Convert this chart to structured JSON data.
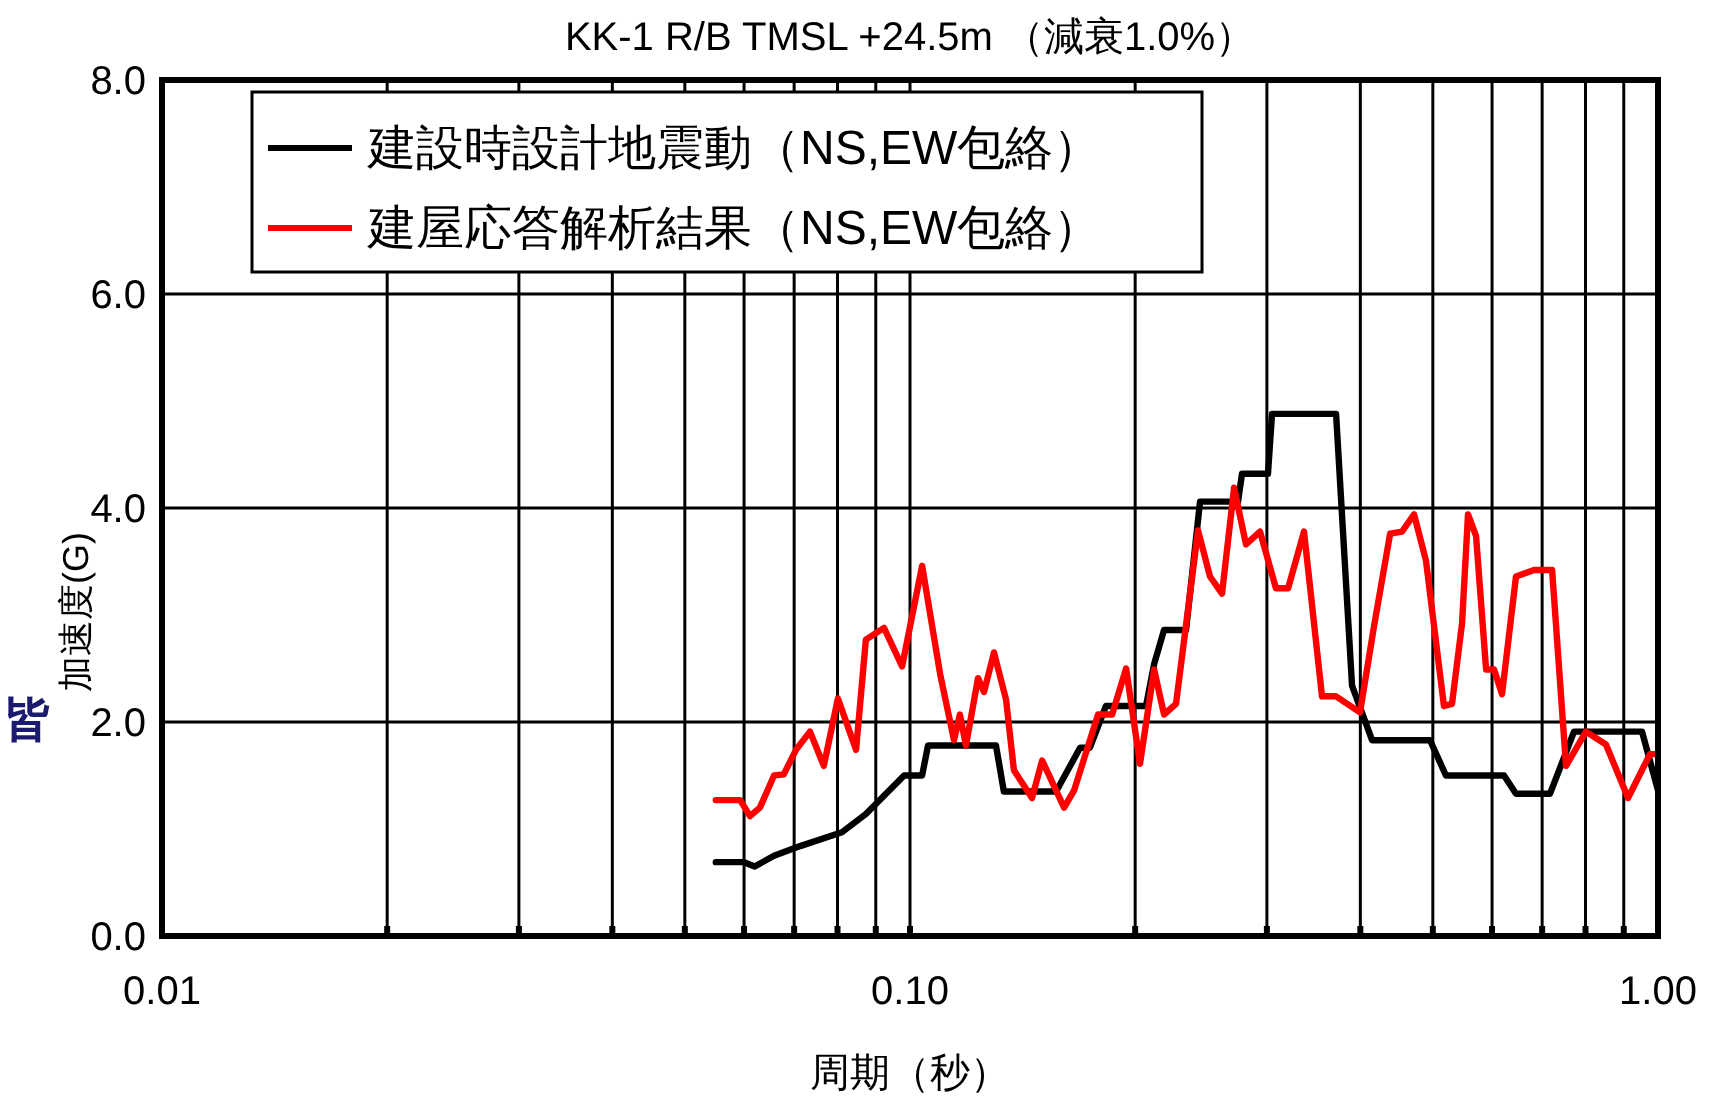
{
  "chart_data": {
    "type": "line",
    "title": "KK-1 R/B TMSL +24.5m （減衰1.0%）",
    "xlabel": "周期（秒）",
    "ylabel": "加速度(G)",
    "annotations": [
      "皆"
    ],
    "log": "x",
    "xlim": [
      0.01,
      1.0
    ],
    "ylim": [
      0,
      8
    ],
    "xticks": [
      {
        "value": 0.01,
        "label": "0.01"
      },
      {
        "value": 0.02,
        "label": null
      },
      {
        "value": 0.03,
        "label": null
      },
      {
        "value": 0.04,
        "label": null
      },
      {
        "value": 0.05,
        "label": null
      },
      {
        "value": 0.06,
        "label": null
      },
      {
        "value": 0.07,
        "label": null
      },
      {
        "value": 0.08,
        "label": null
      },
      {
        "value": 0.09,
        "label": null
      },
      {
        "value": 0.1,
        "label": "0.10"
      },
      {
        "value": 0.2,
        "label": null
      },
      {
        "value": 0.3,
        "label": null
      },
      {
        "value": 0.4,
        "label": null
      },
      {
        "value": 0.5,
        "label": null
      },
      {
        "value": 0.6,
        "label": null
      },
      {
        "value": 0.7,
        "label": null
      },
      {
        "value": 0.8,
        "label": null
      },
      {
        "value": 0.9,
        "label": null
      },
      {
        "value": 1.0,
        "label": "1.00"
      }
    ],
    "yticks": [
      {
        "value": 0,
        "label": "0.0"
      },
      {
        "value": 2,
        "label": "2.0"
      },
      {
        "value": 4,
        "label": "4.0"
      },
      {
        "value": 6,
        "label": "6.0"
      },
      {
        "value": 8,
        "label": "8.0"
      }
    ],
    "grid": true,
    "legend": "top left",
    "series": [
      {
        "name": "建設時設計地震動（NS,EW包絡）",
        "color": "#000000",
        "x": [
          0.055,
          0.06,
          0.062,
          0.0658,
          0.0713,
          0.0811,
          0.0873,
          0.0982,
          0.1038,
          0.1057,
          0.1303,
          0.1335,
          0.1568,
          0.1688,
          0.174,
          0.1828,
          0.2068,
          0.212,
          0.2186,
          0.2339,
          0.2442,
          0.2745,
          0.2779,
          0.301,
          0.3048,
          0.3712,
          0.3899,
          0.4147,
          0.4957,
          0.5206,
          0.6225,
          0.6459,
          0.7173,
          0.7722,
          0.952,
          1.0
        ],
        "values": [
          0.69,
          0.69,
          0.65,
          0.75,
          0.84,
          0.97,
          1.14,
          1.5,
          1.5,
          1.78,
          1.78,
          1.35,
          1.35,
          1.76,
          1.76,
          2.15,
          2.15,
          2.54,
          2.86,
          2.86,
          4.06,
          4.06,
          4.32,
          4.32,
          4.88,
          4.88,
          2.34,
          1.83,
          1.83,
          1.5,
          1.5,
          1.33,
          1.33,
          1.91,
          1.91,
          1.36
        ]
      },
      {
        "name": "建屋応答解析結果（NS,EW包絡）",
        "color": "#ff0000",
        "x": [
          0.055,
          0.0593,
          0.0611,
          0.063,
          0.0658,
          0.0678,
          0.0704,
          0.0735,
          0.0767,
          0.0801,
          0.0847,
          0.0873,
          0.0923,
          0.0976,
          0.1038,
          0.1097,
          0.1145,
          0.1166,
          0.1188,
          0.1233,
          0.1256,
          0.1295,
          0.1344,
          0.1377,
          0.1456,
          0.1502,
          0.1607,
          0.1657,
          0.1784,
          0.1863,
          0.1945,
          0.203,
          0.212,
          0.2186,
          0.2268,
          0.2427,
          0.2518,
          0.2613,
          0.2712,
          0.2813,
          0.2937,
          0.3085,
          0.3202,
          0.3363,
          0.3555,
          0.3712,
          0.3996,
          0.4173,
          0.4384,
          0.4549,
          0.4719,
          0.4895,
          0.5174,
          0.5304,
          0.547,
          0.5572,
          0.5711,
          0.5891,
          0.6037,
          0.6187,
          0.6459,
          0.6828,
          0.7218,
          0.7534,
          0.801,
          0.852,
          0.9119,
          0.9757,
          1.0
        ],
        "values": [
          1.27,
          1.27,
          1.12,
          1.2,
          1.5,
          1.51,
          1.74,
          1.91,
          1.59,
          2.22,
          1.74,
          2.77,
          2.88,
          2.52,
          3.46,
          2.45,
          1.83,
          2.07,
          1.78,
          2.41,
          2.28,
          2.65,
          2.21,
          1.55,
          1.29,
          1.64,
          1.2,
          1.36,
          2.07,
          2.07,
          2.5,
          1.61,
          2.49,
          2.07,
          2.17,
          3.79,
          3.36,
          3.2,
          4.19,
          3.66,
          3.78,
          3.25,
          3.25,
          3.78,
          2.24,
          2.24,
          2.09,
          2.9,
          3.76,
          3.78,
          3.94,
          3.51,
          2.15,
          2.17,
          2.92,
          3.94,
          3.74,
          2.49,
          2.49,
          2.26,
          3.36,
          3.42,
          3.42,
          1.59,
          1.91,
          1.79,
          1.29,
          1.7,
          1.7
        ]
      }
    ]
  }
}
